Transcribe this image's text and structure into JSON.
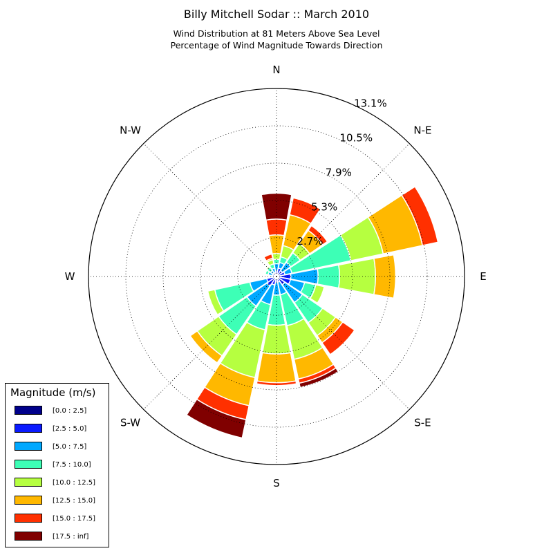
{
  "title": "Billy Mitchell Sodar :: March 2010",
  "subtitle_1": "Wind Distribution at 81 Meters Above Sea Level",
  "subtitle_2": "Percentage of Wind Magnitude Towards Direction",
  "chart_data": {
    "type": "windrose",
    "direction_labels": [
      "N",
      "N-E",
      "E",
      "S-E",
      "S",
      "S-W",
      "W",
      "N-W"
    ],
    "radial_tick_labels": [
      "2.7%",
      "5.3%",
      "7.9%",
      "10.5%",
      "13.1%"
    ],
    "radial_ticks": [
      2.7,
      5.3,
      7.9,
      10.5,
      13.1
    ],
    "radial_max": 13.1,
    "grid": true,
    "legend_title": "Magnitude (m/s)",
    "legend_position": "bottom-left",
    "bins": [
      {
        "label": "[0.0 : 2.5]",
        "color": "#00008b"
      },
      {
        "label": "[2.5 : 5.0]",
        "color": "#0a1aff"
      },
      {
        "label": "[5.0 : 7.5]",
        "color": "#00a8ff"
      },
      {
        "label": "[7.5 : 10.0]",
        "color": "#3dffb6"
      },
      {
        "label": "[10.0 : 12.5]",
        "color": "#b6ff40"
      },
      {
        "label": "[12.5 : 15.0]",
        "color": "#ffb800"
      },
      {
        "label": "[15.0 : 17.5]",
        "color": "#ff3000"
      },
      {
        "label": "[17.5 : inf]",
        "color": "#800000"
      }
    ],
    "directions": [
      0,
      22.5,
      45,
      67.5,
      90,
      112.5,
      135,
      157.5,
      180,
      202.5,
      225,
      247.5,
      270,
      292.5,
      315,
      337.5
    ],
    "cumulative_by_direction": [
      [
        0.15,
        0.4,
        0.9,
        1.2,
        1.6,
        2.9,
        4.0,
        5.8
      ],
      [
        0.15,
        0.6,
        1.0,
        1.4,
        2.2,
        4.4,
        5.6,
        5.6
      ],
      [
        0.15,
        0.5,
        1.2,
        2.0,
        2.8,
        3.9,
        4.3,
        4.3
      ],
      [
        0.15,
        0.6,
        1.1,
        5.3,
        7.6,
        10.4,
        11.5,
        11.5
      ],
      [
        0.15,
        1.0,
        2.9,
        4.4,
        6.9,
        8.3,
        8.3,
        8.3
      ],
      [
        0.15,
        1.0,
        2.0,
        2.8,
        3.4,
        3.4,
        3.4,
        3.4
      ],
      [
        0.15,
        0.7,
        2.2,
        3.9,
        5.0,
        5.6,
        6.6,
        6.6
      ],
      [
        0.15,
        0.4,
        1.3,
        3.5,
        5.9,
        7.3,
        7.6,
        7.9
      ],
      [
        0.15,
        0.4,
        1.3,
        3.4,
        5.4,
        7.4,
        7.6,
        7.6
      ],
      [
        0.15,
        0.6,
        2.0,
        3.8,
        7.2,
        9.2,
        10.2,
        11.5
      ],
      [
        0.15,
        0.8,
        2.5,
        4.9,
        6.7,
        7.3,
        7.3,
        7.3
      ],
      [
        0.15,
        0.7,
        1.9,
        4.4,
        4.9,
        4.9,
        4.9,
        4.9
      ],
      [
        0.15,
        0.3,
        0.4,
        0.4,
        0.4,
        0.4,
        0.4,
        0.4
      ],
      [
        0.15,
        0.3,
        0.6,
        0.8,
        0.8,
        0.8,
        0.8,
        0.8
      ],
      [
        0.15,
        0.3,
        0.5,
        0.8,
        0.9,
        0.9,
        0.9,
        0.9
      ],
      [
        0.15,
        0.3,
        0.6,
        0.9,
        1.2,
        1.3,
        1.6,
        1.6
      ]
    ]
  }
}
